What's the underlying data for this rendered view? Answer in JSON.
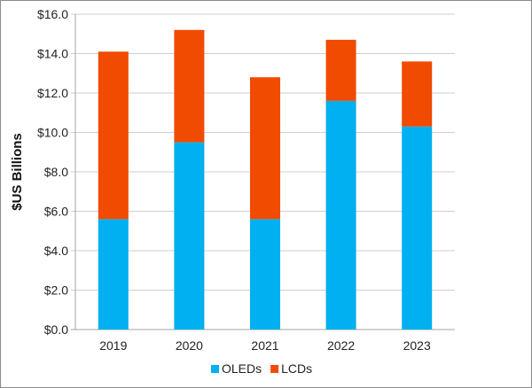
{
  "chart_data": {
    "type": "bar",
    "stacked": true,
    "categories": [
      "2019",
      "2020",
      "2021",
      "2022",
      "2023"
    ],
    "series": [
      {
        "name": "OLEDs",
        "color": "#00B0F0",
        "values": [
          5.6,
          9.5,
          5.6,
          11.6,
          10.3
        ]
      },
      {
        "name": "LCDs",
        "color": "#F04B00",
        "values": [
          8.5,
          5.7,
          7.2,
          3.1,
          3.3
        ]
      }
    ],
    "title": "",
    "xlabel": "",
    "ylabel": "$US Billions",
    "ylim": [
      0,
      16
    ],
    "yticks": [
      "$0.0",
      "$2.0",
      "$4.0",
      "$6.0",
      "$8.0",
      "$10.0",
      "$12.0",
      "$14.0",
      "$16.0"
    ],
    "grid": true,
    "legend": "bottom"
  }
}
